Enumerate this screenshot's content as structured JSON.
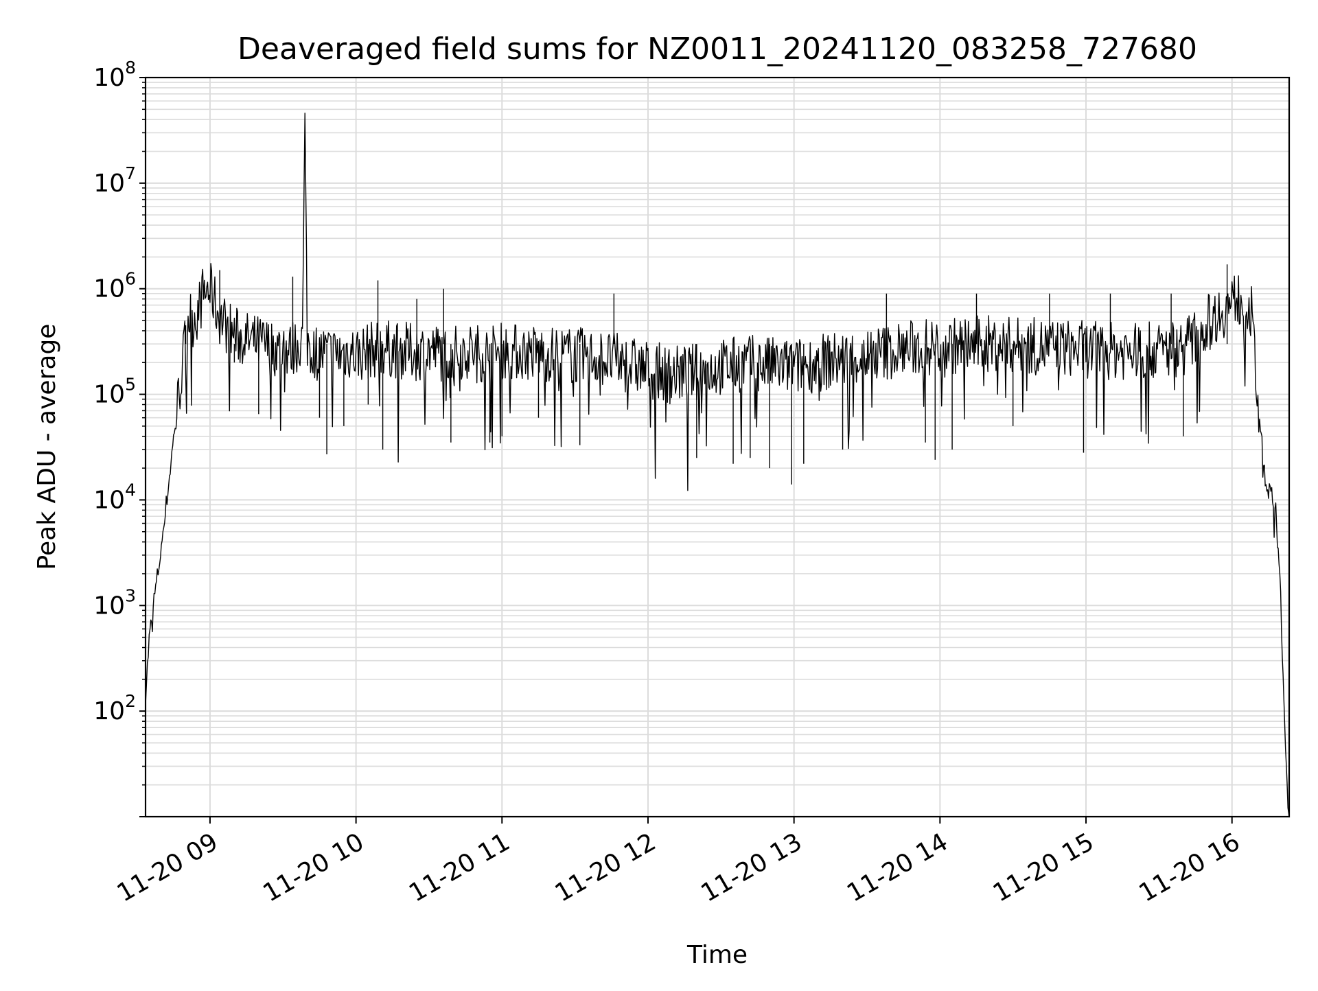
{
  "chart_data": {
    "type": "line",
    "title": "Deaveraged field sums for NZ0011_20241120_083258_727680",
    "xlabel": "Time",
    "ylabel": "Peak ADU - average",
    "yscale": "log",
    "ylim": [
      10,
      100000000
    ],
    "xlim": [
      "2024-11-20T08:33:30",
      "2024-11-20T16:23:30"
    ],
    "grid": true,
    "line_color": "#000000",
    "grid_color": "#dcdcdc",
    "x_ticks": [
      {
        "value": "2024-11-20T09:00",
        "label": "11-20 09"
      },
      {
        "value": "2024-11-20T10:00",
        "label": "11-20 10"
      },
      {
        "value": "2024-11-20T11:00",
        "label": "11-20 11"
      },
      {
        "value": "2024-11-20T12:00",
        "label": "11-20 12"
      },
      {
        "value": "2024-11-20T13:00",
        "label": "11-20 13"
      },
      {
        "value": "2024-11-20T14:00",
        "label": "11-20 14"
      },
      {
        "value": "2024-11-20T15:00",
        "label": "11-20 15"
      },
      {
        "value": "2024-11-20T16:00",
        "label": "11-20 16"
      }
    ],
    "y_ticks": [
      {
        "value": 100,
        "base": "10",
        "exp": "2"
      },
      {
        "value": 1000,
        "base": "10",
        "exp": "3"
      },
      {
        "value": 10000,
        "base": "10",
        "exp": "4"
      },
      {
        "value": 100000,
        "base": "10",
        "exp": "5"
      },
      {
        "value": 1000000,
        "base": "10",
        "exp": "6"
      },
      {
        "value": 10000000,
        "base": "10",
        "exp": "7"
      },
      {
        "value": 100000000,
        "base": "10",
        "exp": "8"
      }
    ],
    "series": [
      {
        "x": [
          "2024-11-20T08:33:30",
          "2024-11-20T08:35:00",
          "2024-11-20T08:37:00",
          "2024-11-20T08:39:00",
          "2024-11-20T08:41:00",
          "2024-11-20T08:43:00",
          "2024-11-20T08:45:00",
          "2024-11-20T08:47:00",
          "2024-11-20T08:49:00",
          "2024-11-20T08:51:00",
          "2024-11-20T08:53:00",
          "2024-11-20T08:55:00",
          "2024-11-20T08:57:00",
          "2024-11-20T08:59:00",
          "2024-11-20T09:01:00",
          "2024-11-20T09:03:00",
          "2024-11-20T09:06:00",
          "2024-11-20T09:09:00",
          "2024-11-20T09:12:00",
          "2024-11-20T09:15:00",
          "2024-11-20T09:18:00",
          "2024-11-20T09:21:00",
          "2024-11-20T09:24:00",
          "2024-11-20T09:27:00",
          "2024-11-20T09:30:00",
          "2024-11-20T09:33:00",
          "2024-11-20T09:36:00",
          "2024-11-20T09:38:00",
          "2024-11-20T09:39:00",
          "2024-11-20T09:40:00",
          "2024-11-20T09:42:00",
          "2024-11-20T09:45:00",
          "2024-11-20T09:48:00",
          "2024-11-20T09:51:00",
          "2024-11-20T09:54:00",
          "2024-11-20T09:57:00",
          "2024-11-20T10:00:00",
          "2024-11-20T10:05:00",
          "2024-11-20T10:10:00",
          "2024-11-20T10:15:00",
          "2024-11-20T10:20:00",
          "2024-11-20T10:25:00",
          "2024-11-20T10:30:00",
          "2024-11-20T10:35:00",
          "2024-11-20T10:40:00",
          "2024-11-20T10:45:00",
          "2024-11-20T10:50:00",
          "2024-11-20T10:55:00",
          "2024-11-20T11:00:00",
          "2024-11-20T11:10:00",
          "2024-11-20T11:20:00",
          "2024-11-20T11:30:00",
          "2024-11-20T11:40:00",
          "2024-11-20T11:50:00",
          "2024-11-20T12:00:00",
          "2024-11-20T12:10:00",
          "2024-11-20T12:20:00",
          "2024-11-20T12:30:00",
          "2024-11-20T12:40:00",
          "2024-11-20T12:50:00",
          "2024-11-20T13:00:00",
          "2024-11-20T13:10:00",
          "2024-11-20T13:20:00",
          "2024-11-20T13:30:00",
          "2024-11-20T13:40:00",
          "2024-11-20T13:50:00",
          "2024-11-20T14:00:00",
          "2024-11-20T14:10:00",
          "2024-11-20T14:20:00",
          "2024-11-20T14:30:00",
          "2024-11-20T14:40:00",
          "2024-11-20T14:50:00",
          "2024-11-20T15:00:00",
          "2024-11-20T15:10:00",
          "2024-11-20T15:20:00",
          "2024-11-20T15:30:00",
          "2024-11-20T15:40:00",
          "2024-11-20T15:45:00",
          "2024-11-20T15:50:00",
          "2024-11-20T15:55:00",
          "2024-11-20T16:00:00",
          "2024-11-20T16:03:00",
          "2024-11-20T16:06:00",
          "2024-11-20T16:08:00",
          "2024-11-20T16:10:00",
          "2024-11-20T16:12:00",
          "2024-11-20T16:14:00",
          "2024-11-20T16:16:00",
          "2024-11-20T16:18:00",
          "2024-11-20T16:20:00",
          "2024-11-20T16:21:00",
          "2024-11-20T16:22:00",
          "2024-11-20T16:23:00",
          "2024-11-20T16:23:30"
        ],
        "values": [
          150,
          500,
          1200,
          2500,
          6000,
          15000,
          40000,
          110000,
          250000,
          650000,
          600000,
          700000,
          1000000,
          1150000,
          1050000,
          700000,
          550000,
          450000,
          400000,
          380000,
          360000,
          350000,
          330000,
          320000,
          310000,
          300000,
          350000,
          380000,
          46000000,
          380000,
          300000,
          290000,
          280000,
          280000,
          280000,
          300000,
          280000,
          300000,
          320000,
          310000,
          300000,
          290000,
          300000,
          290000,
          280000,
          300000,
          290000,
          280000,
          300000,
          290000,
          280000,
          270000,
          260000,
          230000,
          200000,
          180000,
          190000,
          210000,
          230000,
          220000,
          210000,
          230000,
          250000,
          270000,
          300000,
          320000,
          330000,
          340000,
          350000,
          340000,
          330000,
          320000,
          310000,
          300000,
          300000,
          300000,
          330000,
          400000,
          550000,
          700000,
          850000,
          950000,
          900000,
          650000,
          150000,
          40000,
          15000,
          12000,
          8000,
          1500,
          200,
          40,
          12,
          10
        ],
        "spikes": [
          {
            "x": "2024-11-20T08:50:00",
            "y": 450000
          },
          {
            "x": "2024-11-20T09:04:00",
            "y": 1500000
          },
          {
            "x": "2024-11-20T09:10:00",
            "y": 200000
          },
          {
            "x": "2024-11-20T09:20:00",
            "y": 65000
          },
          {
            "x": "2024-11-20T09:34:00",
            "y": 1300000
          },
          {
            "x": "2024-11-20T09:45:00",
            "y": 60000
          },
          {
            "x": "2024-11-20T09:48:00",
            "y": 27000
          },
          {
            "x": "2024-11-20T09:55:00",
            "y": 50000
          },
          {
            "x": "2024-11-20T10:05:00",
            "y": 80000
          },
          {
            "x": "2024-11-20T10:09:00",
            "y": 1200000
          },
          {
            "x": "2024-11-20T10:11:00",
            "y": 30000
          },
          {
            "x": "2024-11-20T10:25:00",
            "y": 800000
          },
          {
            "x": "2024-11-20T10:36:00",
            "y": 1000000
          },
          {
            "x": "2024-11-20T10:39:00",
            "y": 35000
          },
          {
            "x": "2024-11-20T10:55:00",
            "y": 35000
          },
          {
            "x": "2024-11-20T11:00:00",
            "y": 40000
          },
          {
            "x": "2024-11-20T11:15:00",
            "y": 60000
          },
          {
            "x": "2024-11-20T11:32:00",
            "y": 33000
          },
          {
            "x": "2024-11-20T11:46:00",
            "y": 900000
          },
          {
            "x": "2024-11-20T12:20:00",
            "y": 25000
          },
          {
            "x": "2024-11-20T12:35:00",
            "y": 22000
          },
          {
            "x": "2024-11-20T12:42:00",
            "y": 25000
          },
          {
            "x": "2024-11-20T12:50:00",
            "y": 20000
          },
          {
            "x": "2024-11-20T12:59:00",
            "y": 14000
          },
          {
            "x": "2024-11-20T13:04:00",
            "y": 22000
          },
          {
            "x": "2024-11-20T13:20:00",
            "y": 30000
          },
          {
            "x": "2024-11-20T13:38:00",
            "y": 900000
          },
          {
            "x": "2024-11-20T13:54:00",
            "y": 35000
          },
          {
            "x": "2024-11-20T13:58:00",
            "y": 24000
          },
          {
            "x": "2024-11-20T14:05:00",
            "y": 30000
          },
          {
            "x": "2024-11-20T14:15:00",
            "y": 900000
          },
          {
            "x": "2024-11-20T14:30:00",
            "y": 50000
          },
          {
            "x": "2024-11-20T14:45:00",
            "y": 900000
          },
          {
            "x": "2024-11-20T14:59:00",
            "y": 28000
          },
          {
            "x": "2024-11-20T15:10:00",
            "y": 900000
          },
          {
            "x": "2024-11-20T15:35:00",
            "y": 900000
          },
          {
            "x": "2024-11-20T15:40:00",
            "y": 40000
          },
          {
            "x": "2024-11-20T15:58:00",
            "y": 1700000
          }
        ]
      }
    ]
  }
}
